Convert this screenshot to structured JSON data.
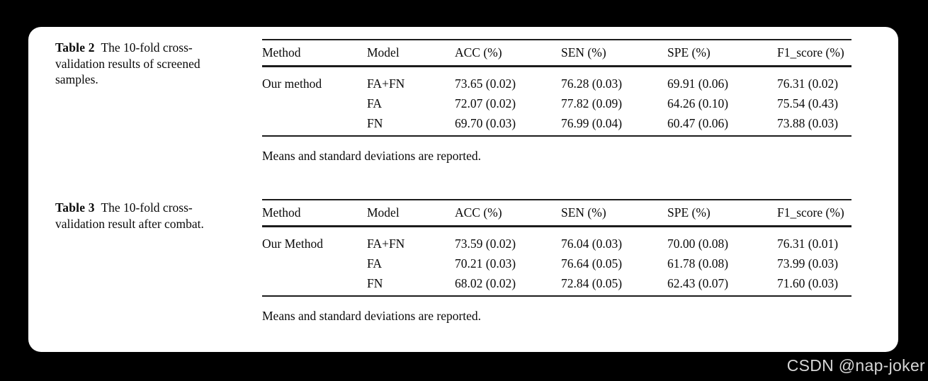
{
  "watermark": "CSDN @nap-joker",
  "tables": [
    {
      "caption_label": "Table 2",
      "caption_text": "The 10-fold cross-validation results of screened samples.",
      "columns": [
        "Method",
        "Model",
        "ACC (%)",
        "SEN (%)",
        "SPE (%)",
        "F1_score (%)"
      ],
      "rows": [
        [
          "Our method",
          "FA+FN",
          "73.65 (0.02)",
          "76.28 (0.03)",
          "69.91 (0.06)",
          "76.31 (0.02)"
        ],
        [
          "",
          "FA",
          "72.07 (0.02)",
          "77.82 (0.09)",
          "64.26 (0.10)",
          "75.54 (0.43)"
        ],
        [
          "",
          "FN",
          "69.70 (0.03)",
          "76.99 (0.04)",
          "60.47 (0.06)",
          "73.88 (0.03)"
        ]
      ],
      "footnote": "Means and standard deviations are reported."
    },
    {
      "caption_label": "Table 3",
      "caption_text": "The 10-fold cross-validation result after combat.",
      "columns": [
        "Method",
        "Model",
        "ACC (%)",
        "SEN (%)",
        "SPE (%)",
        "F1_score (%)"
      ],
      "rows": [
        [
          "Our Method",
          "FA+FN",
          "73.59 (0.02)",
          "76.04 (0.03)",
          "70.00 (0.08)",
          "76.31 (0.01)"
        ],
        [
          "",
          "FA",
          "70.21 (0.03)",
          "76.64 (0.05)",
          "61.78 (0.08)",
          "73.99 (0.03)"
        ],
        [
          "",
          "FN",
          "68.02 (0.02)",
          "72.84 (0.05)",
          "62.43 (0.07)",
          "71.60 (0.03)"
        ]
      ],
      "footnote": "Means and standard deviations are reported."
    }
  ]
}
